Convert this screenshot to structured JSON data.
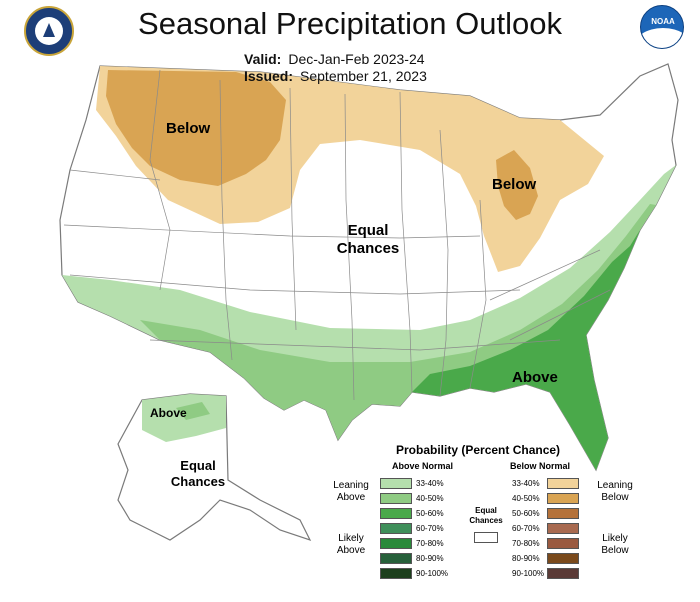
{
  "header": {
    "title": "Seasonal Precipitation Outlook",
    "valid_label": "Valid:",
    "valid_value": "Dec-Jan-Feb 2023-24",
    "issued_label": "Issued:",
    "issued_value": "September 21, 2023"
  },
  "logos": {
    "left": "us-department-of-commerce-seal",
    "right_text": "NOAA"
  },
  "map_labels": {
    "below_north": "Below",
    "below_great_lakes": "Below",
    "equal_chances_conus": [
      "Equal",
      "Chances"
    ],
    "above_southeast": "Above",
    "above_alaska": "Above",
    "equal_chances_alaska": [
      "Equal",
      "Chances"
    ]
  },
  "colors": {
    "below_33_40": "#f2d39a",
    "below_40_50": "#d9a453",
    "above_33_40": "#b5dfad",
    "above_40_50": "#8fcb83",
    "above_50_60": "#4aa94a",
    "border": "#888888"
  },
  "legend": {
    "title": "Probability (Percent Chance)",
    "above_header": "Above Normal",
    "below_header": "Below Normal",
    "equal_label": [
      "Equal",
      "Chances"
    ],
    "leaning_above": [
      "Leaning",
      "Above"
    ],
    "likely_above": [
      "Likely",
      "Above"
    ],
    "leaning_below": [
      "Leaning",
      "Below"
    ],
    "likely_below": [
      "Likely",
      "Below"
    ],
    "above_swatches": [
      {
        "range": "33-40%",
        "color": "#b5dfad"
      },
      {
        "range": "40-50%",
        "color": "#8fcb83"
      },
      {
        "range": "50-60%",
        "color": "#4aa94a"
      },
      {
        "range": "60-70%",
        "color": "#3f8f5a"
      },
      {
        "range": "70-80%",
        "color": "#2a8a3a"
      },
      {
        "range": "80-90%",
        "color": "#27603a"
      },
      {
        "range": "90-100%",
        "color": "#1c3f1c"
      }
    ],
    "below_swatches": [
      {
        "range": "33-40%",
        "color": "#f2d39a"
      },
      {
        "range": "40-50%",
        "color": "#d9a453"
      },
      {
        "range": "50-60%",
        "color": "#b5723a"
      },
      {
        "range": "60-70%",
        "color": "#a86a50"
      },
      {
        "range": "70-80%",
        "color": "#9a5a40"
      },
      {
        "range": "80-90%",
        "color": "#7a4a1c"
      },
      {
        "range": "90-100%",
        "color": "#5a3a36"
      }
    ]
  }
}
